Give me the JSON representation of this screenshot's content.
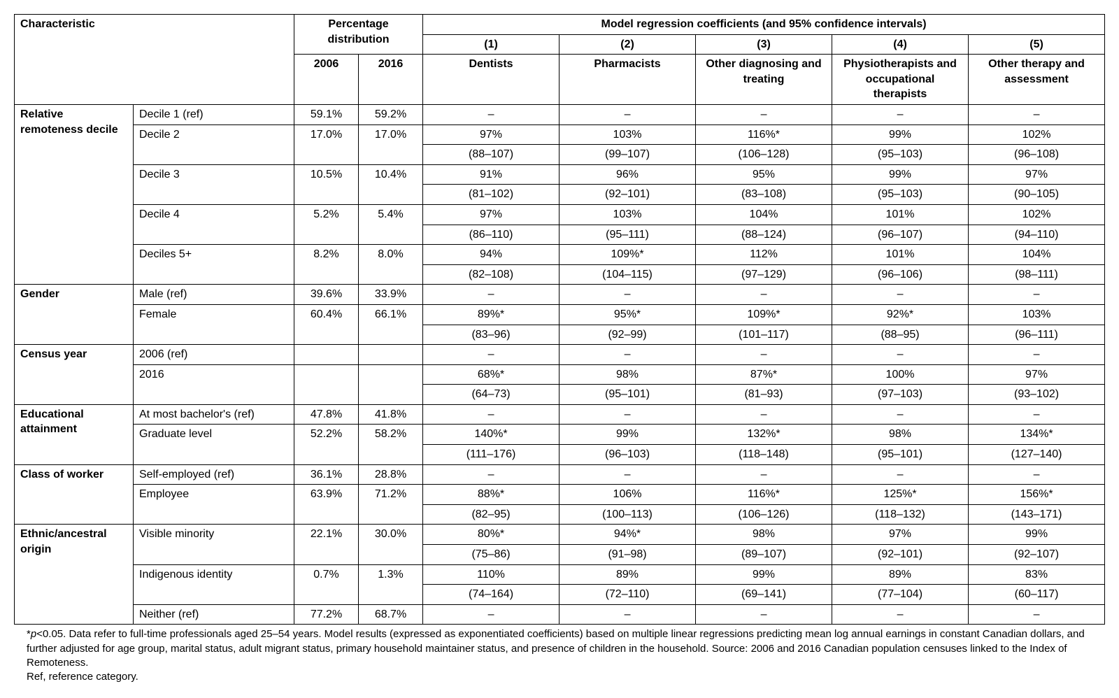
{
  "header": {
    "characteristic": "Characteristic",
    "pct_dist": "Percentage distribution",
    "model_header": "Model regression coefficients (and 95% confidence intervals)",
    "year_2006": "2006",
    "year_2016": "2016",
    "col1_num": "(1)",
    "col1_name": "Dentists",
    "col2_num": "(2)",
    "col2_name": "Pharmacists",
    "col3_num": "(3)",
    "col3_name": "Other diagnosing and treating",
    "col4_num": "(4)",
    "col4_name": "Physiotherapists and occupational therapists",
    "col5_num": "(5)",
    "col5_name": "Other therapy and assessment"
  },
  "groups": [
    {
      "label": "Relative remoteness decile",
      "rows": [
        {
          "sub": "Decile 1 (ref)",
          "p06": "59.1%",
          "p16": "59.2%",
          "m": [
            "–",
            "–",
            "–",
            "–",
            "–"
          ]
        },
        {
          "sub": "Decile 2",
          "p06": "17.0%",
          "p16": "17.0%",
          "m": [
            "97%",
            "103%",
            "116%*",
            "99%",
            "102%"
          ],
          "ci": [
            "(88–107)",
            "(99–107)",
            "(106–128)",
            "(95–103)",
            "(96–108)"
          ]
        },
        {
          "sub": "Decile 3",
          "p06": "10.5%",
          "p16": "10.4%",
          "m": [
            "91%",
            "96%",
            "95%",
            "99%",
            "97%"
          ],
          "ci": [
            "(81–102)",
            "(92–101)",
            "(83–108)",
            "(95–103)",
            "(90–105)"
          ]
        },
        {
          "sub": "Decile 4",
          "p06": "5.2%",
          "p16": "5.4%",
          "m": [
            "97%",
            "103%",
            "104%",
            "101%",
            "102%"
          ],
          "ci": [
            "(86–110)",
            "(95–111)",
            "(88–124)",
            "(96–107)",
            "(94–110)"
          ]
        },
        {
          "sub": "Deciles 5+",
          "p06": "8.2%",
          "p16": "8.0%",
          "m": [
            "94%",
            "109%*",
            "112%",
            "101%",
            "104%"
          ],
          "ci": [
            "(82–108)",
            "(104–115)",
            "(97–129)",
            "(96–106)",
            "(98–111)"
          ]
        }
      ]
    },
    {
      "label": "Gender",
      "rows": [
        {
          "sub": "Male (ref)",
          "p06": "39.6%",
          "p16": "33.9%",
          "m": [
            "–",
            "–",
            "–",
            "–",
            "–"
          ]
        },
        {
          "sub": "Female",
          "p06": "60.4%",
          "p16": "66.1%",
          "m": [
            "89%*",
            "95%*",
            "109%*",
            "92%*",
            "103%"
          ],
          "ci": [
            "(83–96)",
            "(92–99)",
            "(101–117)",
            "(88–95)",
            "(96–111)"
          ]
        }
      ]
    },
    {
      "label": "Census year",
      "rows": [
        {
          "sub": "2006 (ref)",
          "p06": "",
          "p16": "",
          "m": [
            "–",
            "–",
            "–",
            "–",
            "–"
          ]
        },
        {
          "sub": "2016",
          "p06": "",
          "p16": "",
          "m": [
            "68%*",
            "98%",
            "87%*",
            "100%",
            "97%"
          ],
          "ci": [
            "(64–73)",
            "(95–101)",
            "(81–93)",
            "(97–103)",
            "(93–102)"
          ]
        }
      ]
    },
    {
      "label": "Educational attainment",
      "rows": [
        {
          "sub": "At most bachelor's (ref)",
          "p06": "47.8%",
          "p16": "41.8%",
          "m": [
            "–",
            "–",
            "–",
            "–",
            "–"
          ]
        },
        {
          "sub": "Graduate level",
          "p06": "52.2%",
          "p16": "58.2%",
          "m": [
            "140%*",
            "99%",
            "132%*",
            "98%",
            "134%*"
          ],
          "ci": [
            "(111–176)",
            "(96–103)",
            "(118–148)",
            "(95–101)",
            "(127–140)"
          ]
        }
      ]
    },
    {
      "label": "Class of worker",
      "rows": [
        {
          "sub": "Self-employed (ref)",
          "p06": "36.1%",
          "p16": "28.8%",
          "m": [
            "–",
            "–",
            "–",
            "–",
            "–"
          ]
        },
        {
          "sub": "Employee",
          "p06": "63.9%",
          "p16": "71.2%",
          "m": [
            "88%*",
            "106%",
            "116%*",
            "125%*",
            "156%*"
          ],
          "ci": [
            "(82–95)",
            "(100–113)",
            "(106–126)",
            "(118–132)",
            "(143–171)"
          ]
        }
      ]
    },
    {
      "label": "Ethnic/ancestral origin",
      "rows": [
        {
          "sub": "Visible minority",
          "p06": "22.1%",
          "p16": "30.0%",
          "m": [
            "80%*",
            "94%*",
            "98%",
            "97%",
            "99%"
          ],
          "ci": [
            "(75–86)",
            "(91–98)",
            "(89–107)",
            "(92–101)",
            "(92–107)"
          ]
        },
        {
          "sub": "Indigenous identity",
          "p06": "0.7%",
          "p16": "1.3%",
          "m": [
            "110%",
            "89%",
            "99%",
            "89%",
            "83%"
          ],
          "ci": [
            "(74–164)",
            "(72–110)",
            "(69–141)",
            "(77–104)",
            "(60–117)"
          ]
        },
        {
          "sub": "Neither (ref)",
          "p06": "77.2%",
          "p16": "68.7%",
          "m": [
            "–",
            "–",
            "–",
            "–",
            "–"
          ]
        }
      ]
    }
  ],
  "footnote": {
    "line1_prefix": "*",
    "line1_p": "p",
    "line1_rest": "<0.05. Data refer to full-time professionals aged 25–54 years. Model results (expressed as exponentiated coefficients) based on multiple linear regressions predicting mean log annual earnings in constant Canadian dollars, and further adjusted for age group, marital status, adult migrant status, primary household maintainer status, and presence of children in the household. Source: 2006 and 2016 Canadian population censuses linked to the Index of Remoteness.",
    "line2": "Ref, reference category."
  }
}
